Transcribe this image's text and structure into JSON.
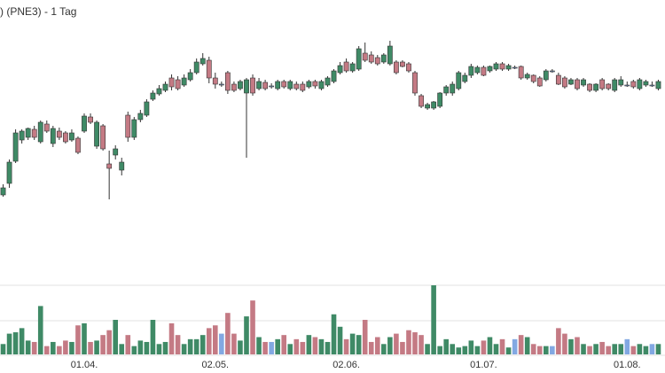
{
  "chart_data": {
    "type": "candlestick",
    "title": ") (PNE3) - 1 Tag",
    "categories": [
      null,
      null,
      null,
      null,
      null,
      null,
      null,
      null,
      null,
      null,
      null,
      null,
      null,
      "01.04.",
      null,
      null,
      null,
      null,
      null,
      null,
      null,
      null,
      null,
      null,
      null,
      null,
      null,
      null,
      null,
      null,
      null,
      null,
      null,
      null,
      "02.05.",
      null,
      null,
      null,
      null,
      null,
      null,
      null,
      null,
      null,
      null,
      null,
      null,
      null,
      null,
      null,
      null,
      null,
      null,
      null,
      null,
      "02.06.",
      null,
      null,
      null,
      null,
      null,
      null,
      null,
      null,
      null,
      null,
      null,
      null,
      null,
      null,
      null,
      null,
      null,
      null,
      null,
      null,
      null,
      "01.07.",
      null,
      null,
      null,
      null,
      null,
      null,
      null,
      null,
      null,
      null,
      null,
      null,
      null,
      null,
      null,
      null,
      null,
      null,
      null,
      null,
      null,
      null,
      "01.08.",
      null,
      null,
      null,
      null,
      null
    ],
    "open": [
      5,
      11.5,
      24,
      36,
      37.5,
      42,
      35,
      45,
      34,
      41,
      40,
      36,
      37,
      41,
      49,
      32.5,
      44,
      22.5,
      27.5,
      19,
      50,
      37.5,
      47.5,
      50,
      59,
      62,
      64,
      71,
      70,
      67,
      70,
      74,
      79,
      81,
      71,
      67.5,
      74,
      67.5,
      65,
      62.5,
      71,
      65,
      68.5,
      66.5,
      65,
      69,
      65,
      67.5,
      67.5,
      66,
      69,
      65,
      67,
      69,
      74,
      80,
      75,
      76,
      85,
      84,
      82.5,
      80,
      79,
      80,
      80,
      79,
      74,
      61,
      54,
      54,
      55,
      62.5,
      62.5,
      65,
      69,
      72.5,
      74,
      77,
      75,
      76,
      79,
      76,
      77,
      77.5,
      71,
      72.5,
      71,
      70,
      75,
      72.5,
      71,
      67.5,
      70,
      67,
      67.5,
      64,
      70,
      67.5,
      64,
      67,
      67,
      69,
      65,
      67,
      67,
      65
    ],
    "high": [
      11,
      25,
      42,
      42,
      43,
      44,
      47,
      47,
      44,
      43,
      41,
      42,
      38,
      51,
      51,
      47,
      45,
      30,
      33,
      26,
      52,
      49,
      53,
      59,
      64,
      67,
      69,
      73,
      72,
      73,
      76,
      82,
      85,
      83,
      74,
      69,
      75,
      69,
      70,
      71,
      73,
      71,
      70,
      68,
      70,
      70,
      70,
      69,
      69,
      70,
      70,
      70,
      72,
      76,
      80,
      82,
      80,
      89,
      91,
      86,
      84,
      85,
      92,
      81,
      81,
      80,
      75,
      62,
      57,
      58,
      63,
      67,
      69,
      75,
      74,
      79,
      78,
      78,
      78,
      80,
      80,
      79,
      78,
      78,
      74,
      73,
      72,
      76,
      76,
      74,
      72,
      71,
      71,
      71,
      68,
      68,
      71,
      68,
      71,
      72,
      69,
      70,
      71,
      70,
      69,
      70
    ],
    "low": [
      4,
      9,
      23,
      34,
      36,
      36,
      34,
      40,
      32,
      36,
      34,
      35,
      28,
      40,
      45,
      31,
      30,
      2.5,
      25,
      16,
      35,
      36,
      46,
      49,
      58,
      61,
      63,
      64,
      64,
      66,
      69,
      73,
      78,
      68,
      65,
      66,
      62,
      63,
      64,
      26,
      61,
      64,
      64,
      65,
      64,
      65,
      64,
      64,
      63,
      65,
      65,
      64,
      66,
      68,
      73,
      74,
      74,
      75,
      80,
      79,
      78,
      79,
      78,
      73,
      77,
      74,
      61,
      54,
      53,
      53,
      54,
      61,
      61,
      64,
      68,
      71,
      73,
      72,
      74,
      75,
      75,
      75,
      76,
      70,
      70,
      68,
      66,
      69,
      74,
      67,
      65,
      67,
      64,
      66,
      63,
      63,
      64,
      64,
      63,
      66,
      66,
      65,
      64,
      66,
      66,
      64
    ],
    "close": [
      9,
      23.5,
      40,
      41,
      42.5,
      37.5,
      46,
      41,
      42.5,
      37.5,
      35,
      40,
      29,
      49.5,
      46,
      46,
      31,
      20,
      31,
      23.5,
      37.5,
      47.5,
      51,
      57.5,
      62.5,
      65,
      67.5,
      66,
      65,
      71,
      74,
      80,
      82,
      71,
      67.5,
      67.5,
      64,
      64,
      69,
      70,
      62.5,
      69,
      65,
      66.5,
      69,
      66,
      69,
      65,
      64,
      69,
      66.5,
      69,
      71,
      75,
      78,
      75,
      79,
      87.5,
      81,
      80,
      79,
      84,
      89,
      74,
      77.5,
      75,
      62.5,
      55,
      56,
      57.5,
      62.5,
      66,
      67.5,
      74,
      72.5,
      77.5,
      77,
      72.5,
      77.5,
      79,
      76,
      78,
      77,
      71,
      73,
      69,
      66.5,
      75,
      75,
      67.5,
      66,
      70,
      65,
      70,
      64,
      67.5,
      65,
      65,
      70,
      70,
      67,
      66,
      70,
      69,
      67,
      69
    ],
    "volume": [
      15,
      30,
      32,
      38,
      20,
      18,
      70,
      12,
      18,
      12,
      20,
      18,
      42,
      45,
      18,
      20,
      28,
      35,
      50,
      15,
      28,
      12,
      20,
      18,
      50,
      15,
      18,
      45,
      28,
      15,
      22,
      22,
      28,
      38,
      42,
      30,
      60,
      30,
      20,
      55,
      78,
      25,
      18,
      18,
      22,
      28,
      15,
      22,
      18,
      28,
      25,
      22,
      18,
      58,
      40,
      22,
      30,
      28,
      50,
      18,
      25,
      15,
      25,
      30,
      18,
      35,
      32,
      28,
      15,
      100,
      12,
      22,
      15,
      10,
      12,
      20,
      12,
      20,
      25,
      15,
      22,
      10,
      22,
      28,
      25,
      15,
      12,
      12,
      12,
      38,
      30,
      22,
      25,
      15,
      12,
      15,
      18,
      12,
      15,
      15,
      22,
      12,
      15,
      12,
      15,
      15
    ],
    "ylim": [
      0,
      100
    ],
    "volume_ylim": [
      0,
      100
    ],
    "colors": {
      "up": "#3f8a66",
      "down": "#c47a84",
      "neutral": "#82a8e2"
    }
  }
}
